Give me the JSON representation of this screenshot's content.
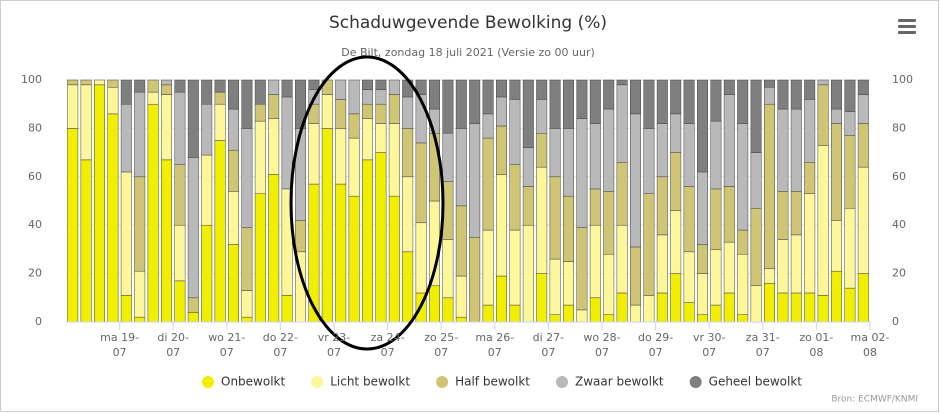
{
  "chart_data": {
    "type": "stacked-bar",
    "title": "Schaduwgevende Bewolking (%)",
    "subtitle": "De Bilt, zondag 18 juli 2021 (Versie zo 00 uur)",
    "source": "Bron: ECMWF/KNMI",
    "xlim": [
      0,
      60
    ],
    "xticks": [
      {
        "value": 4,
        "label": "ma 19-07"
      },
      {
        "value": 8,
        "label": "di 20-07"
      },
      {
        "value": 12,
        "label": "wo 21-07"
      },
      {
        "value": 16,
        "label": "do 22-07"
      },
      {
        "value": 20,
        "label": "vr 23-07"
      },
      {
        "value": 24,
        "label": "za 24-07"
      },
      {
        "value": 28,
        "label": "zo 25-07"
      },
      {
        "value": 32,
        "label": "ma 26-07"
      },
      {
        "value": 36,
        "label": "di 27-07"
      },
      {
        "value": 40,
        "label": "wo 28-07"
      },
      {
        "value": 44,
        "label": "do 29-07"
      },
      {
        "value": 48,
        "label": "vr 30-07"
      },
      {
        "value": 52,
        "label": "za 31-07"
      },
      {
        "value": 56,
        "label": "zo 01-08"
      },
      {
        "value": 60,
        "label": "ma 02-08"
      }
    ],
    "ylim": [
      0,
      100
    ],
    "yticks": [
      0,
      20,
      40,
      60,
      80,
      100
    ],
    "grid": true,
    "series": [
      {
        "name": "Onbewolkt",
        "color": "#f2ee00",
        "values": [
          80,
          67,
          98,
          86,
          11,
          2,
          90,
          67,
          17,
          4,
          40,
          75,
          32,
          2,
          53,
          61,
          11,
          0,
          57,
          80,
          57,
          52,
          67,
          70,
          52,
          29,
          12,
          15,
          10,
          2,
          0,
          7,
          19,
          7,
          0,
          20,
          3,
          7,
          0,
          10,
          3,
          12,
          0,
          0,
          12,
          20,
          8,
          3,
          7,
          12,
          3,
          0,
          16,
          12,
          12,
          12,
          11,
          21,
          14,
          20
        ]
      },
      {
        "name": "Licht bewolkt",
        "color": "#fdf79a",
        "values": [
          18,
          31,
          2,
          11,
          51,
          19,
          5,
          27,
          23,
          0,
          29,
          15,
          22,
          11,
          30,
          23,
          44,
          29,
          25,
          14,
          23,
          24,
          17,
          12,
          30,
          31,
          29,
          35,
          24,
          17,
          0,
          31,
          42,
          31,
          40,
          44,
          23,
          18,
          5,
          30,
          25,
          28,
          7,
          11,
          24,
          26,
          21,
          17,
          23,
          21,
          25,
          15,
          6,
          22,
          24,
          41,
          62,
          21,
          33,
          44
        ]
      },
      {
        "name": "Half bewolkt",
        "color": "#cfc575",
        "values": [
          2,
          2,
          0,
          3,
          0,
          39,
          5,
          4,
          25,
          6,
          0,
          5,
          17,
          26,
          7,
          10,
          0,
          13,
          8,
          6,
          12,
          10,
          6,
          8,
          12,
          20,
          33,
          28,
          24,
          29,
          35,
          38,
          20,
          27,
          16,
          14,
          34,
          27,
          34,
          15,
          26,
          26,
          24,
          42,
          24,
          24,
          27,
          12,
          25,
          23,
          10,
          32,
          68,
          20,
          18,
          13,
          25,
          40,
          30,
          18
        ]
      },
      {
        "name": "Zwaar bewolkt",
        "color": "#b9b9b9",
        "values": [
          0,
          0,
          0,
          0,
          28,
          35,
          0,
          2,
          30,
          58,
          21,
          0,
          17,
          41,
          0,
          6,
          38,
          38,
          6,
          0,
          8,
          14,
          6,
          6,
          6,
          13,
          20,
          10,
          20,
          32,
          47,
          10,
          12,
          27,
          16,
          14,
          20,
          28,
          45,
          27,
          34,
          32,
          55,
          27,
          22,
          16,
          26,
          30,
          28,
          38,
          44,
          23,
          7,
          34,
          34,
          26,
          2,
          6,
          10,
          12
        ]
      },
      {
        "name": "Geheel bewolkt",
        "color": "#7f7f7f",
        "values": [
          0,
          0,
          0,
          0,
          10,
          5,
          0,
          0,
          5,
          32,
          10,
          5,
          12,
          20,
          10,
          0,
          7,
          20,
          4,
          0,
          0,
          0,
          4,
          4,
          0,
          7,
          6,
          12,
          22,
          20,
          18,
          14,
          7,
          8,
          28,
          8,
          20,
          20,
          16,
          18,
          12,
          2,
          14,
          20,
          18,
          14,
          18,
          38,
          17,
          6,
          18,
          30,
          3,
          12,
          12,
          8,
          0,
          12,
          13,
          6
        ]
      }
    ]
  }
}
